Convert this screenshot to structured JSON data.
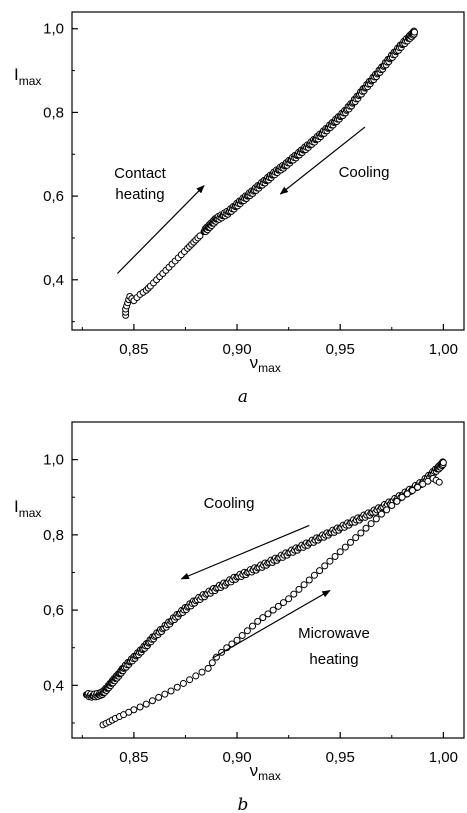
{
  "chart_data": [
    {
      "type": "scatter",
      "panel_label": "a",
      "xlabel": "ν",
      "xlabel_sub": "max",
      "ylabel": "I",
      "ylabel_sub": "max",
      "xlim": [
        0.82,
        1.01
      ],
      "ylim": [
        0.28,
        1.04
      ],
      "x_ticks": [
        0.85,
        0.9,
        0.95,
        1.0
      ],
      "x_tick_labels": [
        "0,85",
        "0,90",
        "0,95",
        "1,00"
      ],
      "y_ticks": [
        0.4,
        0.6,
        0.8,
        1.0
      ],
      "y_tick_labels": [
        "0,4",
        "0,6",
        "0,8",
        "1,0"
      ],
      "grid": false,
      "series": [
        {
          "name": "Contact heating",
          "x": [
            0.846,
            0.846,
            0.847,
            0.848,
            0.85,
            0.853,
            0.856,
            0.858,
            0.861,
            0.864,
            0.867,
            0.87,
            0.873,
            0.876,
            0.878,
            0.88,
            0.882
          ],
          "y": [
            0.315,
            0.33,
            0.345,
            0.36,
            0.35,
            0.365,
            0.375,
            0.385,
            0.4,
            0.415,
            0.43,
            0.445,
            0.46,
            0.475,
            0.485,
            0.495,
            0.505
          ]
        },
        {
          "name": "Cooling",
          "x": [
            0.884,
            0.886,
            0.888,
            0.89,
            0.893,
            0.896,
            0.899,
            0.902,
            0.905,
            0.908,
            0.911,
            0.914,
            0.917,
            0.92,
            0.923,
            0.926,
            0.929,
            0.932,
            0.935,
            0.938,
            0.941,
            0.944,
            0.947,
            0.95,
            0.953,
            0.956,
            0.959,
            0.962,
            0.965,
            0.968,
            0.971,
            0.974,
            0.977,
            0.98,
            0.983,
            0.985,
            0.986
          ],
          "y": [
            0.515,
            0.525,
            0.535,
            0.545,
            0.553,
            0.562,
            0.575,
            0.588,
            0.6,
            0.612,
            0.625,
            0.637,
            0.65,
            0.662,
            0.672,
            0.685,
            0.697,
            0.71,
            0.722,
            0.735,
            0.748,
            0.762,
            0.776,
            0.79,
            0.805,
            0.822,
            0.84,
            0.858,
            0.875,
            0.892,
            0.91,
            0.928,
            0.945,
            0.962,
            0.977,
            0.986,
            0.992
          ]
        }
      ],
      "annotations": [
        {
          "text_lines": [
            "Contact",
            "heating"
          ],
          "arrow_from": [
            0.842,
            0.415
          ],
          "arrow_to": [
            0.884,
            0.625
          ]
        },
        {
          "text_lines": [
            "Cooling"
          ],
          "arrow_from": [
            0.962,
            0.765
          ],
          "arrow_to": [
            0.921,
            0.605
          ]
        }
      ]
    },
    {
      "type": "scatter",
      "panel_label": "b",
      "xlabel": "ν",
      "xlabel_sub": "max",
      "ylabel": "I",
      "ylabel_sub": "max",
      "xlim": [
        0.82,
        1.01
      ],
      "ylim": [
        0.26,
        1.1
      ],
      "x_ticks": [
        0.85,
        0.9,
        0.95,
        1.0
      ],
      "x_tick_labels": [
        "0,85",
        "0,90",
        "0,95",
        "1,00"
      ],
      "y_ticks": [
        0.4,
        0.6,
        0.8,
        1.0
      ],
      "y_tick_labels": [
        "0,4",
        "0,6",
        "0,8",
        "1,0"
      ],
      "grid": false,
      "series": [
        {
          "name": "Cooling",
          "x": [
            0.827,
            0.83,
            0.833,
            0.835,
            0.837,
            0.839,
            0.841,
            0.843,
            0.845,
            0.848,
            0.851,
            0.854,
            0.857,
            0.86,
            0.864,
            0.868,
            0.872,
            0.876,
            0.88,
            0.885,
            0.89,
            0.895,
            0.9,
            0.905,
            0.91,
            0.915,
            0.92,
            0.925,
            0.93,
            0.935,
            0.94,
            0.945,
            0.95,
            0.955,
            0.96,
            0.965,
            0.97,
            0.975,
            0.98,
            0.985,
            0.99,
            0.994,
            0.997,
            0.999,
            1.0
          ],
          "y": [
            0.375,
            0.372,
            0.375,
            0.38,
            0.392,
            0.405,
            0.418,
            0.43,
            0.445,
            0.462,
            0.478,
            0.495,
            0.512,
            0.53,
            0.55,
            0.57,
            0.59,
            0.608,
            0.625,
            0.642,
            0.658,
            0.672,
            0.688,
            0.7,
            0.712,
            0.725,
            0.738,
            0.752,
            0.765,
            0.778,
            0.792,
            0.805,
            0.818,
            0.832,
            0.845,
            0.858,
            0.872,
            0.888,
            0.905,
            0.922,
            0.94,
            0.96,
            0.975,
            0.985,
            0.992
          ]
        },
        {
          "name": "Microwave heating",
          "x": [
            0.835,
            0.838,
            0.841,
            0.845,
            0.85,
            0.856,
            0.862,
            0.868,
            0.874,
            0.88,
            0.886,
            0.89,
            0.895,
            0.9,
            0.905,
            0.91,
            0.915,
            0.92,
            0.925,
            0.93,
            0.935,
            0.94,
            0.945,
            0.95,
            0.955,
            0.96,
            0.965,
            0.97,
            0.975,
            0.98,
            0.985,
            0.99,
            0.995,
            0.998
          ],
          "y": [
            0.295,
            0.303,
            0.312,
            0.322,
            0.335,
            0.35,
            0.368,
            0.385,
            0.405,
            0.425,
            0.445,
            0.475,
            0.5,
            0.52,
            0.545,
            0.57,
            0.59,
            0.61,
            0.63,
            0.655,
            0.68,
            0.705,
            0.73,
            0.755,
            0.78,
            0.805,
            0.83,
            0.855,
            0.878,
            0.9,
            0.918,
            0.935,
            0.95,
            0.94
          ]
        }
      ],
      "annotations": [
        {
          "text_lines": [
            "Cooling"
          ],
          "arrow_from": [
            0.935,
            0.825
          ],
          "arrow_to": [
            0.873,
            0.683
          ]
        },
        {
          "text_lines": [
            "Microwave",
            "heating"
          ],
          "arrow_from": [
            0.888,
            0.472
          ],
          "arrow_to": [
            0.945,
            0.652
          ]
        }
      ]
    }
  ]
}
